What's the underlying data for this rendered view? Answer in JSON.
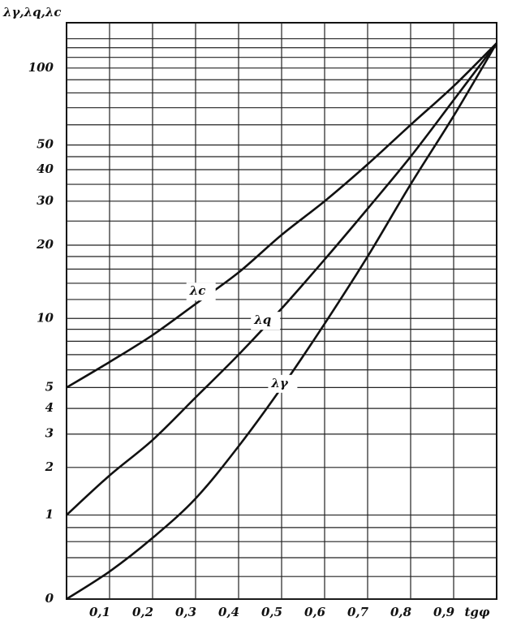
{
  "chart_data": {
    "type": "line",
    "y_label": "λγ,λq,λc",
    "x_label": "tgφ",
    "x": [
      0,
      0.1,
      0.2,
      0.3,
      0.4,
      0.5,
      0.6,
      0.7,
      0.8,
      0.9,
      1
    ],
    "series": [
      {
        "name": "λc",
        "color": "#111111",
        "values": [
          5,
          6.5,
          8.5,
          11.5,
          15.5,
          22,
          30,
          42,
          60,
          85,
          125
        ]
      },
      {
        "name": "λq",
        "color": "#111111",
        "values": [
          1,
          1.8,
          2.8,
          4.5,
          7,
          11,
          17.5,
          28,
          45,
          75,
          125
        ]
      },
      {
        "name": "λγ",
        "color": "#111111",
        "values": [
          0,
          0.25,
          0.65,
          1.3,
          2.6,
          5,
          9.5,
          18,
          35,
          65,
          125
        ]
      }
    ],
    "xlim": [
      0,
      1
    ],
    "xticks": [
      {
        "value": 0.1,
        "label": "0,1"
      },
      {
        "value": 0.2,
        "label": "0,2"
      },
      {
        "value": 0.3,
        "label": "0,3"
      },
      {
        "value": 0.4,
        "label": "0,4"
      },
      {
        "value": 0.5,
        "label": "0,5"
      },
      {
        "value": 0.6,
        "label": "0,6"
      },
      {
        "value": 0.7,
        "label": "0,7"
      },
      {
        "value": 0.8,
        "label": "0,8"
      },
      {
        "value": 0.9,
        "label": "0,9"
      }
    ],
    "ylim": [
      0,
      150
    ],
    "yscale": "log",
    "yscale_offset": 0.9,
    "yticks": [
      0,
      1,
      2,
      3,
      4,
      5,
      10,
      20,
      30,
      40,
      50,
      100
    ],
    "yminor": [
      0.2,
      0.4,
      0.6,
      0.8,
      6,
      7,
      8,
      9,
      12,
      14,
      16,
      18,
      25,
      35,
      45,
      60,
      70,
      80,
      90,
      110,
      120,
      130
    ],
    "grid": true
  }
}
